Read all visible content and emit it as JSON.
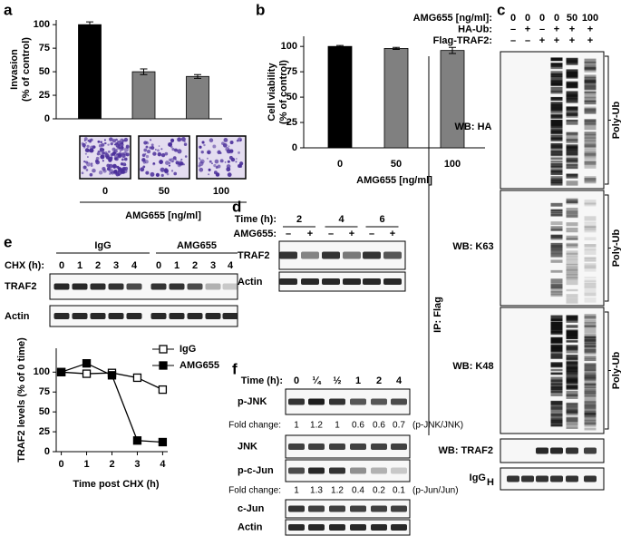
{
  "panel_letters": [
    "a",
    "b",
    "c",
    "d",
    "e",
    "f"
  ],
  "chart_data": [
    {
      "type": "bar",
      "y_label": [
        "Invasion",
        "(% of control)"
      ],
      "x_label": "AMG655 [ng/ml]",
      "categories": [
        "0",
        "50",
        "100"
      ],
      "values": [
        100,
        50,
        45
      ],
      "errors": [
        3,
        3,
        2
      ],
      "colors": [
        "#000000",
        "#808080",
        "#808080"
      ],
      "ylim": [
        0,
        105
      ],
      "yticks": [
        0,
        25,
        50,
        75,
        100
      ]
    },
    {
      "type": "bar",
      "y_label": [
        "Cell viability",
        "(% of control)"
      ],
      "x_label": "AMG655 [ng/ml]",
      "categories": [
        "0",
        "50",
        "100"
      ],
      "values": [
        100,
        98,
        96
      ],
      "errors": [
        1,
        1,
        3
      ],
      "colors": [
        "#000000",
        "#808080",
        "#808080"
      ],
      "ylim": [
        0,
        110
      ],
      "yticks": [
        0,
        25,
        50,
        75,
        100
      ]
    },
    {
      "type": "line",
      "y_label": "TRAF2 levels (% of 0 time)",
      "x_label": "Time post CHX (h)",
      "x": [
        0,
        1,
        2,
        3,
        4
      ],
      "series": [
        {
          "name": "IgG",
          "color": "#000000",
          "marker": "open-square",
          "values": [
            100,
            98,
            99,
            93,
            78
          ]
        },
        {
          "name": "AMG655",
          "color": "#000000",
          "marker": "filled-square",
          "values": [
            100,
            111,
            96,
            14,
            12
          ]
        }
      ],
      "xlim": [
        -0.2,
        4.2
      ],
      "ylim": [
        0,
        130
      ],
      "xticks": [
        0,
        1,
        2,
        3,
        4
      ],
      "yticks": [
        0,
        25,
        50,
        75,
        100
      ],
      "legend": "upper-right"
    }
  ],
  "blot_c": {
    "conditions": [
      {
        "label": "AMG655 [ng/ml]:",
        "lanes": [
          "0",
          "0",
          "0",
          "0",
          "50",
          "100"
        ]
      },
      {
        "label": "HA-Ub:",
        "lanes": [
          "–",
          "+",
          "–",
          "+",
          "+",
          "+"
        ]
      },
      {
        "label": "Flag-TRAF2:",
        "lanes": [
          "–",
          "–",
          "+",
          "+",
          "+",
          "+"
        ]
      }
    ],
    "blots": [
      "WB: HA",
      "WB: K63",
      "WB: K48",
      "WB: TRAF2"
    ],
    "igg": "IgG",
    "igg_sub": "H",
    "brackets": [
      "Poly-Ub",
      "Poly-Ub",
      "Poly-Ub"
    ],
    "side": "IP: Flag"
  },
  "blot_d": {
    "time_label": "Time (h):",
    "times": [
      "2",
      "4",
      "6"
    ],
    "treat_label": "AMG655:",
    "treat": [
      "–",
      "+",
      "–",
      "+",
      "–",
      "+"
    ],
    "blots": [
      "TRAF2",
      "Actin"
    ]
  },
  "blot_e": {
    "groups": [
      "IgG",
      "AMG655"
    ],
    "time_label": "CHX (h):",
    "times": [
      "0",
      "1",
      "2",
      "3",
      "4",
      "0",
      "1",
      "2",
      "3",
      "4"
    ],
    "blots": [
      "TRAF2",
      "Actin"
    ]
  },
  "blot_f": {
    "time_label": "Time (h):",
    "times": [
      "0",
      "¼",
      "½",
      "1",
      "2",
      "4"
    ],
    "blots": [
      "p-JNK",
      "JNK",
      "p-c-Jun",
      "c-Jun",
      "Actin"
    ],
    "fold_label": "Fold change:",
    "fold_jnk": [
      1,
      1.2,
      1,
      0.6,
      0.6,
      0.7
    ],
    "fold_jnk_note": "(p-JNK/JNK)",
    "fold_jun": [
      1,
      1.3,
      1.2,
      0.4,
      0.2,
      0.1
    ],
    "fold_jun_note": "(p-Jun/Jun)"
  }
}
